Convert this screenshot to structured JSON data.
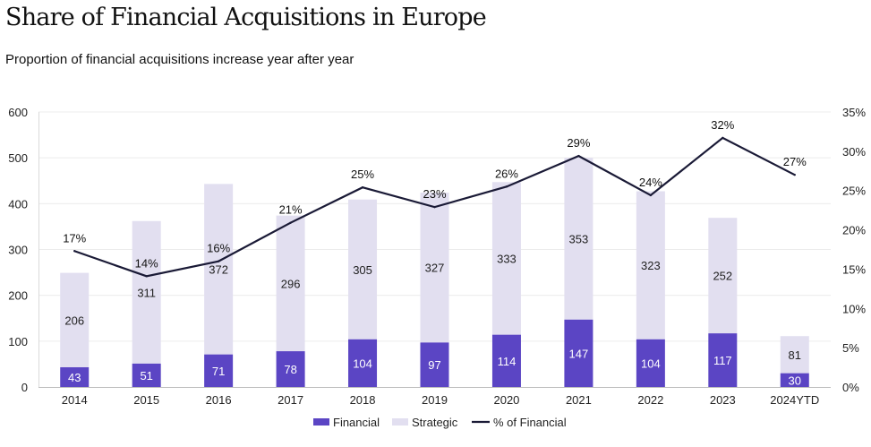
{
  "header": {
    "title": "Share of Financial Acquisitions in Europe",
    "subtitle": "Proportion of financial acquisitions increase year after year"
  },
  "chart_data": {
    "type": "bar",
    "stacked": true,
    "title": "Share of Financial Acquisitions in Europe",
    "subtitle": "Proportion of financial acquisitions increase year after year",
    "xlabel": "",
    "ylabel": "",
    "categories": [
      "2014",
      "2015",
      "2016",
      "2017",
      "2018",
      "2019",
      "2020",
      "2021",
      "2022",
      "2023",
      "2024YTD"
    ],
    "series": [
      {
        "name": "Financial",
        "type": "bar",
        "axis": "left",
        "color": "#5B45C4",
        "values": [
          43,
          51,
          71,
          78,
          104,
          97,
          114,
          147,
          104,
          117,
          30
        ]
      },
      {
        "name": "Strategic",
        "type": "bar",
        "axis": "left",
        "color": "#E2DFF0",
        "values": [
          206,
          311,
          372,
          296,
          305,
          327,
          333,
          353,
          323,
          252,
          81
        ]
      },
      {
        "name": "% of Financial",
        "type": "line",
        "axis": "right",
        "color": "#1A1A36",
        "values": [
          17.3,
          14.1,
          16.0,
          20.9,
          25.4,
          22.9,
          25.5,
          29.4,
          24.4,
          31.7,
          27.0
        ],
        "labels": [
          "17%",
          "14%",
          "16%",
          "21%",
          "25%",
          "23%",
          "26%",
          "29%",
          "24%",
          "32%",
          "27%"
        ]
      }
    ],
    "y_left": {
      "ylim": [
        0,
        600
      ],
      "ticks": [
        0,
        100,
        200,
        300,
        400,
        500,
        600
      ],
      "tick_labels": [
        "0",
        "100",
        "200",
        "300",
        "400",
        "500",
        "600"
      ]
    },
    "y_right": {
      "ylim": [
        0,
        35
      ],
      "ticks": [
        0,
        5,
        10,
        15,
        20,
        25,
        30,
        35
      ],
      "tick_labels": [
        "0%",
        "5%",
        "10%",
        "15%",
        "20%",
        "25%",
        "30%",
        "35%"
      ]
    },
    "grid": true,
    "legend": {
      "position": "bottom-center",
      "entries": [
        "Financial",
        "Strategic",
        "% of Financial"
      ]
    }
  }
}
